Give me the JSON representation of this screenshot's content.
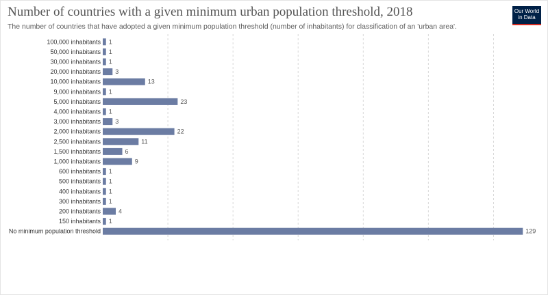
{
  "header": {
    "title": "Number of countries with a given minimum urban population threshold, 2018",
    "subtitle": "The number of countries that have adopted a given minimum population threshold (number of inhabitants) for classification of an 'urban area'.",
    "logo_line1": "Our World",
    "logo_line2": "in Data"
  },
  "colors": {
    "bar": "#6b7ca3",
    "grid": "#d8d8d8",
    "logo_bg": "#002147",
    "logo_accent": "#d42b21"
  },
  "chart_data": {
    "type": "bar",
    "orientation": "horizontal",
    "title": "Number of countries with a given minimum urban population threshold, 2018",
    "categories": [
      "100,000 inhabitants",
      "50,000 inhabitants",
      "30,000 inhabitants",
      "20,000 inhabitants",
      "10,000 inhabitants",
      "9,000 inhabitants",
      "5,000 inhabitants",
      "4,000 inhabitants",
      "3,000 inhabitants",
      "2,000 inhabitants",
      "2,500 inhabitants",
      "1,500 inhabitants",
      "1,000 inhabitants",
      "600 inhabitants",
      "500 inhabitants",
      "400 inhabitants",
      "300 inhabitants",
      "200 inhabitants",
      "150 inhabitants",
      "No minimum population threshold"
    ],
    "values": [
      1,
      1,
      1,
      3,
      13,
      1,
      23,
      1,
      3,
      22,
      11,
      6,
      9,
      1,
      1,
      1,
      1,
      4,
      1,
      129
    ],
    "xlim": [
      0,
      130
    ],
    "grid": "vertical dashed",
    "legend": "none"
  }
}
